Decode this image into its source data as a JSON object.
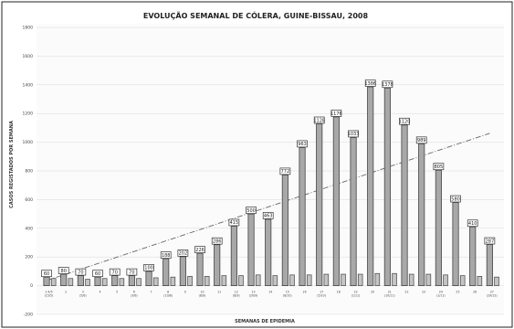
{
  "chart_data": {
    "type": "bar",
    "title": "EVOLUÇÃO SEMANAL DE CÓLERA, GUINE-BISSAU, 2008",
    "xlabel": "SEMANAS DE EPIDEMIA",
    "ylabel": "CASOS REGISTADOS POR SEMANA",
    "ylim": [
      -200,
      1800
    ],
    "yticks": [
      -200,
      0,
      200,
      400,
      600,
      800,
      1000,
      1200,
      1400,
      1600,
      1800
    ],
    "grid": true,
    "trendline": true,
    "categories": [
      "1-4/5\n(15/5)",
      "2",
      "3\n(5/6)",
      "4",
      "5",
      "6\n(3/6)",
      "7",
      "8\n(10/8)",
      "9",
      "10\n(8/9)",
      "11",
      "12\n(8/9)",
      "13\n(20/9)",
      "14",
      "15\n(8/10)",
      "16",
      "17\n(5/10)",
      "18",
      "19\n(1/11)",
      "20",
      "21\n(10/11)",
      "22",
      "23",
      "24\n(1/11)",
      "25",
      "26",
      "27\n(29/12)"
    ],
    "series": [
      {
        "values": [
          60,
          80,
          70,
          60,
          70,
          70,
          100,
          188,
          202,
          226,
          286,
          415,
          500,
          463,
          772,
          963,
          1128,
          1176,
          1033,
          1386,
          1378,
          1120,
          989,
          805,
          580,
          410,
          287
        ]
      },
      {
        "values": [
          50,
          50,
          45,
          50,
          50,
          50,
          55,
          60,
          65,
          65,
          70,
          70,
          75,
          70,
          75,
          75,
          80,
          80,
          80,
          85,
          85,
          80,
          80,
          75,
          70,
          65,
          60
        ]
      }
    ]
  }
}
